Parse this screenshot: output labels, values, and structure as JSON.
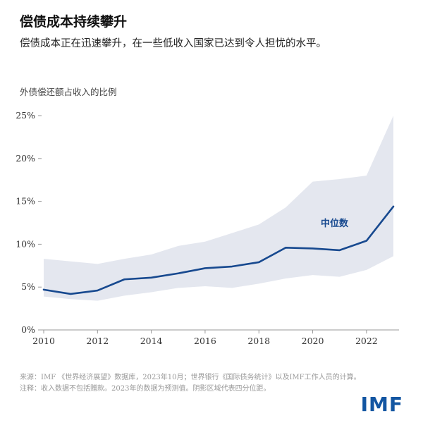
{
  "header": {
    "title": "偿债成本持续攀升",
    "subtitle": "偿债成本正在迅速攀升，在一些低收入国家已达到令人担忧的水平。"
  },
  "chart_data": {
    "type": "line",
    "title": "偿债成本持续攀升",
    "axis_title": "外债偿还额占收入的比例",
    "x": [
      2010,
      2011,
      2012,
      2013,
      2014,
      2015,
      2016,
      2017,
      2018,
      2019,
      2020,
      2021,
      2022,
      2023
    ],
    "series": [
      {
        "name": "中位数",
        "values": [
          4.7,
          4.2,
          4.6,
          5.9,
          6.1,
          6.6,
          7.2,
          7.4,
          7.9,
          9.6,
          9.5,
          9.3,
          10.4,
          14.4
        ]
      }
    ],
    "band": {
      "name": "四分位距",
      "lower": [
        3.9,
        3.6,
        3.4,
        4.0,
        4.4,
        4.9,
        5.1,
        4.9,
        5.4,
        6.0,
        6.4,
        6.2,
        7.0,
        8.6
      ],
      "upper": [
        8.3,
        8.0,
        7.7,
        8.3,
        8.8,
        9.8,
        10.3,
        11.3,
        12.3,
        14.3,
        17.3,
        17.6,
        18.0,
        25.0
      ]
    },
    "xlim": [
      2010,
      2023
    ],
    "ylim": [
      0,
      25
    ],
    "yticks": [
      0,
      5,
      10,
      15,
      20,
      25
    ],
    "ytick_suffix": "%",
    "xticks": [
      2010,
      2012,
      2014,
      2016,
      2018,
      2020,
      2022
    ],
    "grid": false,
    "legend_label": "中位数",
    "legend_pos": {
      "x": 2020.3,
      "y": 12.1
    },
    "colors": {
      "line": "#17498f",
      "band": "#e4e7ef",
      "axis": "#999999",
      "tick_text": "#333333"
    }
  },
  "footer": {
    "source": "来源：IMF 《世界经济展望》数据库，2023年10月；世界银行《国际债务统计》以及IMF工作人员的计算。",
    "note": "注释：收入数据不包括赠款。2023年的数据为预测值。阴影区域代表四分位距。",
    "logo": "IMF"
  }
}
